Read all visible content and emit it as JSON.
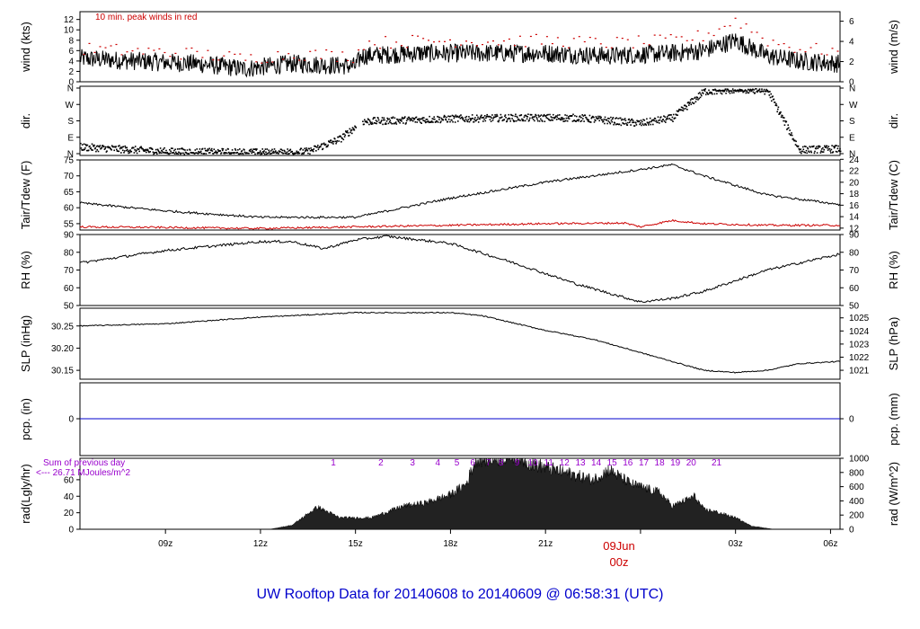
{
  "title": "UW Rooftop Data for 20140608  to  20140609 @ 06:58:31  (UTC)",
  "colors": {
    "title": "#0000cc",
    "peak": "#cc0000",
    "dew": "#cc0000",
    "pcp": "#0000cc",
    "annot": "#9900cc",
    "line": "#000000"
  },
  "chart_data": {
    "type": "line",
    "x_axis": {
      "range_hours": [
        6.3,
        30.3
      ],
      "ticks": [
        {
          "h": 9,
          "label": "09z"
        },
        {
          "h": 12,
          "label": "12z"
        },
        {
          "h": 15,
          "label": "15z"
        },
        {
          "h": 18,
          "label": "18z"
        },
        {
          "h": 21,
          "label": "21z"
        },
        {
          "h": 24,
          "label": ""
        },
        {
          "h": 27,
          "label": "03z"
        },
        {
          "h": 30,
          "label": "06z"
        }
      ],
      "date_marker": {
        "h": 24,
        "date": "09Jun",
        "time": "00z"
      }
    },
    "panels": {
      "wind": {
        "ylabel_left": "wind (kts)",
        "ylabel_right": "wind (m/s)",
        "ylim": [
          0,
          13.5
        ],
        "ticks_left": [
          0,
          2,
          4,
          6,
          8,
          10,
          12
        ],
        "ticks_right": [
          0,
          2,
          4,
          6
        ],
        "right_factor": 1.944,
        "annotation": "10 min. peak winds in red",
        "series": [
          {
            "name": "wind",
            "x": [
              6.3,
              8,
              10,
              11.5,
              13,
              15,
              15.2,
              17,
              19,
              21,
              23,
              25,
              26,
              27,
              28,
              29,
              30.3
            ],
            "y": [
              4.5,
              4,
              3.5,
              2.5,
              3.5,
              3,
              5,
              5.5,
              5.5,
              5.5,
              5,
              5.5,
              6,
              8,
              5,
              4,
              3.5
            ]
          },
          {
            "name": "10 min. peak winds in red",
            "x": [
              6.3,
              8,
              10,
              11.5,
              13,
              15,
              15.2,
              17,
              19,
              21,
              23,
              25,
              26,
              27,
              28,
              29,
              30.3
            ],
            "y": [
              6.5,
              6,
              5.5,
              4.5,
              5.5,
              5,
              7.5,
              8,
              8,
              8,
              7.5,
              8,
              9,
              12,
              8,
              6.5,
              6
            ]
          }
        ]
      },
      "dir": {
        "ylabel": "dir.",
        "cats": [
          "N",
          "E",
          "S",
          "W",
          "N"
        ],
        "ylim": [
          0,
          360
        ],
        "series": [
          {
            "name": "dir",
            "x": [
              6.3,
              9,
              12,
              13.5,
              14.5,
              15.2,
              18,
              20,
              22,
              24,
              25,
              26,
              27,
              28,
              29,
              30.3
            ],
            "y": [
              40,
              15,
              10,
              15,
              85,
              180,
              195,
              200,
              200,
              170,
              200,
              345,
              355,
              350,
              25,
              30
            ]
          }
        ]
      },
      "temp": {
        "ylabel_left": "Tair/Tdew (F)",
        "ylabel_right": "Tair/Tdew (C)",
        "ylim": [
          53,
          75
        ],
        "ticks_left": [
          55,
          60,
          65,
          70,
          75
        ],
        "ticks_right": [
          12,
          14,
          16,
          18,
          20,
          22,
          24
        ],
        "series": [
          {
            "name": "Tair",
            "x": [
              6.3,
              9,
              12,
              15,
              18,
              21,
              24,
              25,
              26,
              27,
              28,
              30.3
            ],
            "y": [
              61.5,
              59,
              57,
              57,
              63,
              68,
              72,
              73.5,
              70,
              67,
              64,
              61
            ]
          },
          {
            "name": "Tdew",
            "x": [
              6.3,
              9,
              12,
              15,
              18,
              21,
              23.5,
              24,
              25,
              26,
              28,
              30.3
            ],
            "y": [
              54,
              53.8,
              53.5,
              54,
              54.5,
              55,
              55.2,
              54,
              56,
              55,
              54.5,
              54.5
            ]
          }
        ]
      },
      "rh": {
        "ylabel": "RH (%)",
        "ylim": [
          50,
          90
        ],
        "ticks": [
          50,
          60,
          70,
          80,
          90
        ],
        "series": [
          {
            "name": "RH",
            "x": [
              6.3,
              9,
              12,
              13,
              14,
              15,
              16,
              18,
              20,
              22,
              24,
              25,
              26,
              27,
              28,
              30.3
            ],
            "y": [
              74,
              81,
              86,
              86,
              82,
              87,
              89,
              85,
              74,
              62,
              52,
              54,
              58,
              64,
              70,
              79
            ]
          }
        ]
      },
      "slp": {
        "ylabel_left": "SLP (inHg)",
        "ylabel_right": "SLP (hPa)",
        "ylim": [
          30.13,
          30.29
        ],
        "ticks_left": [
          30.15,
          30.2,
          30.25
        ],
        "ticks_right": [
          1021,
          1022,
          1023,
          1024,
          1025
        ],
        "series": [
          {
            "name": "SLP",
            "x": [
              6.3,
              9,
              12,
              15,
              18,
              19,
              21,
              22.5,
              24,
              25,
              26,
              27,
              28,
              29,
              30.3
            ],
            "y": [
              30.25,
              30.255,
              30.27,
              30.28,
              30.28,
              30.273,
              30.24,
              30.22,
              30.19,
              30.17,
              30.15,
              30.145,
              30.15,
              30.165,
              30.17
            ]
          }
        ]
      },
      "pcp": {
        "ylabel_left": "pcp. (in)",
        "ylabel_right": "pcp. (mm)",
        "tick_left": "0",
        "tick_right": "0",
        "value": 0
      },
      "rad": {
        "ylabel_left": "rad(Lgly/hr)",
        "ylabel_right": "rad (W/m^2)",
        "ylim": [
          0,
          86
        ],
        "ticks_left": [
          0,
          20,
          40,
          60
        ],
        "ticks_right": [
          0,
          200,
          400,
          600,
          800,
          1000
        ],
        "note_line1": "Sum of previous day",
        "note_line2": "<--- 26.71 MJoules/m^2",
        "hour_labels": [
          "1",
          "2",
          "3",
          "4",
          "5",
          "6",
          "7",
          "8",
          "9",
          "10",
          "11",
          "12",
          "13",
          "14",
          "15",
          "16",
          "17",
          "18",
          "19",
          "20",
          "21"
        ],
        "hour_label_x": [
          14.3,
          15.8,
          16.8,
          17.6,
          18.2,
          18.7,
          19.2,
          19.6,
          20.1,
          20.6,
          21.1,
          21.6,
          22.1,
          22.6,
          23.1,
          23.6,
          24.1,
          24.6,
          25.1,
          25.6,
          26.4
        ],
        "series": [
          {
            "name": "rad",
            "x": [
              12.3,
              13,
              13.8,
              14.5,
              15.5,
              16.5,
              17.2,
              18,
              18.5,
              18.8,
              19.5,
              20,
              20.5,
              21.5,
              22.5,
              23,
              23.7,
              24.3,
              24.6,
              25,
              25.7,
              26,
              26.3,
              27,
              27.5,
              28.2
            ],
            "y": [
              0,
              5,
              27,
              14,
              14,
              28,
              32,
              42,
              55,
              85,
              86,
              90,
              80,
              70,
              60,
              72,
              55,
              48,
              45,
              28,
              40,
              24,
              22,
              14,
              4,
              0
            ]
          }
        ]
      }
    }
  }
}
